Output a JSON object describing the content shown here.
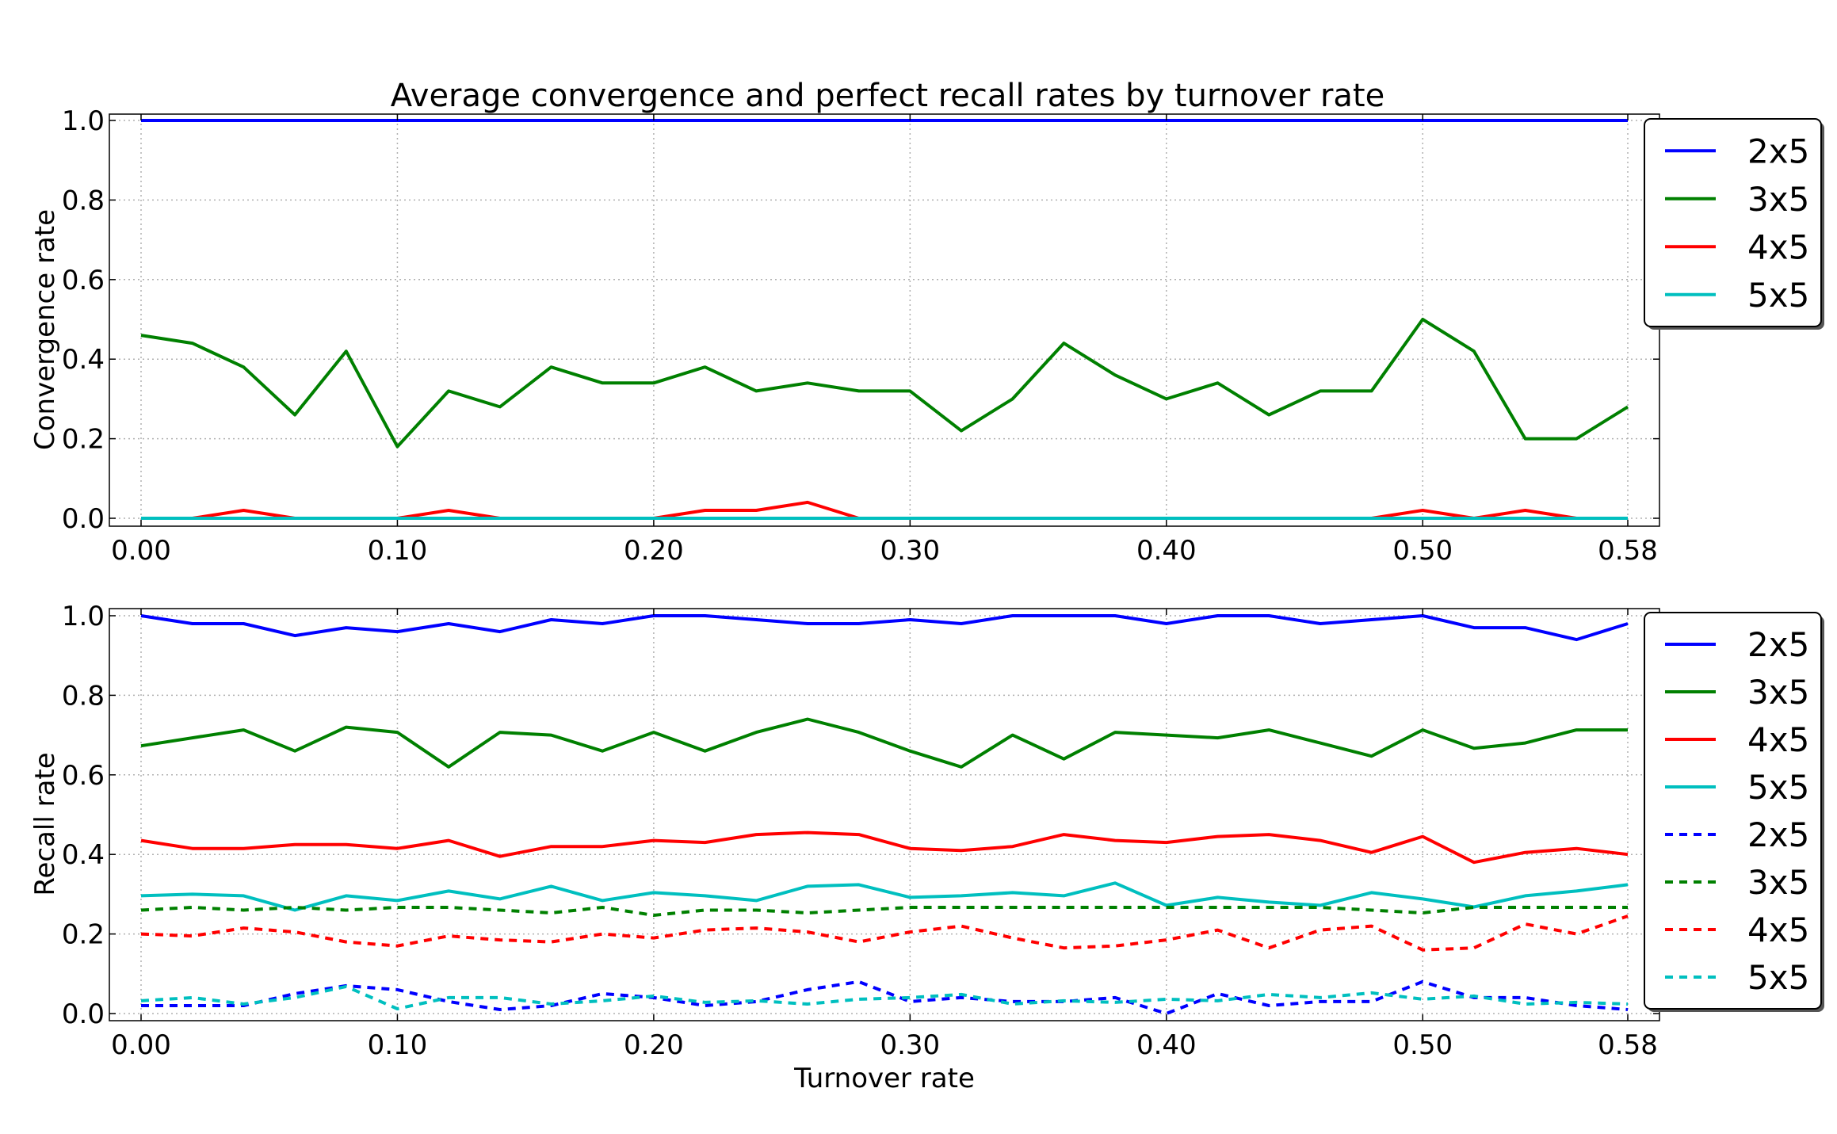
{
  "chart_data": [
    {
      "type": "line",
      "title": "Average convergence and perfect recall rates by turnover rate",
      "xlabel": "",
      "ylabel": "Convergence rate",
      "xlim": [
        0.0,
        0.58
      ],
      "ylim": [
        0.0,
        1.0
      ],
      "grid": true,
      "legend_position": "upper-right outside",
      "xticks": [
        "0.00",
        "0.10",
        "0.20",
        "0.30",
        "0.40",
        "0.50",
        "0.58"
      ],
      "yticks": [
        "0.0",
        "0.2",
        "0.4",
        "0.6",
        "0.8",
        "1.0"
      ],
      "x": [
        0.0,
        0.02,
        0.04,
        0.06,
        0.08,
        0.1,
        0.12,
        0.14,
        0.16,
        0.18,
        0.2,
        0.22,
        0.24,
        0.26,
        0.28,
        0.3,
        0.32,
        0.34,
        0.36,
        0.38,
        0.4,
        0.42,
        0.44,
        0.46,
        0.48,
        0.5,
        0.52,
        0.54,
        0.56,
        0.58
      ],
      "series": [
        {
          "name": "2x5",
          "color": "#0000ff",
          "style": "solid",
          "values": [
            1,
            1,
            1,
            1,
            1,
            1,
            1,
            1,
            1,
            1,
            1,
            1,
            1,
            1,
            1,
            1,
            1,
            1,
            1,
            1,
            1,
            1,
            1,
            1,
            1,
            1,
            1,
            1,
            1,
            1
          ]
        },
        {
          "name": "3x5",
          "color": "#008000",
          "style": "solid",
          "values": [
            0.46,
            0.44,
            0.38,
            0.26,
            0.42,
            0.18,
            0.32,
            0.28,
            0.38,
            0.34,
            0.34,
            0.38,
            0.32,
            0.34,
            0.32,
            0.32,
            0.22,
            0.3,
            0.44,
            0.36,
            0.3,
            0.34,
            0.26,
            0.32,
            0.32,
            0.5,
            0.42,
            0.2,
            0.2,
            0.28
          ]
        },
        {
          "name": "4x5",
          "color": "#ff0000",
          "style": "solid",
          "values": [
            0,
            0,
            0.02,
            0,
            0,
            0,
            0.02,
            0,
            0,
            0,
            0,
            0.02,
            0.02,
            0.04,
            0,
            0,
            0,
            0,
            0,
            0,
            0,
            0,
            0,
            0,
            0,
            0.02,
            0,
            0.02,
            0,
            0
          ]
        },
        {
          "name": "5x5",
          "color": "#00bfbf",
          "style": "solid",
          "values": [
            0,
            0,
            0,
            0,
            0,
            0,
            0,
            0,
            0,
            0,
            0,
            0,
            0,
            0,
            0,
            0,
            0,
            0,
            0,
            0,
            0,
            0,
            0,
            0,
            0,
            0,
            0,
            0,
            0,
            0
          ]
        }
      ]
    },
    {
      "type": "line",
      "title": "",
      "xlabel": "Turnover rate",
      "ylabel": "Recall rate",
      "xlim": [
        0.0,
        0.58
      ],
      "ylim": [
        0.0,
        1.0
      ],
      "grid": true,
      "legend_position": "upper-right outside",
      "xticks": [
        "0.00",
        "0.10",
        "0.20",
        "0.30",
        "0.40",
        "0.50",
        "0.58"
      ],
      "yticks": [
        "0.0",
        "0.2",
        "0.4",
        "0.6",
        "0.8",
        "1.0"
      ],
      "x": [
        0.0,
        0.02,
        0.04,
        0.06,
        0.08,
        0.1,
        0.12,
        0.14,
        0.16,
        0.18,
        0.2,
        0.22,
        0.24,
        0.26,
        0.28,
        0.3,
        0.32,
        0.34,
        0.36,
        0.38,
        0.4,
        0.42,
        0.44,
        0.46,
        0.48,
        0.5,
        0.52,
        0.54,
        0.56,
        0.58
      ],
      "series": [
        {
          "name": "2x5",
          "color": "#0000ff",
          "style": "solid",
          "values": [
            1.0,
            0.98,
            0.98,
            0.95,
            0.97,
            0.96,
            0.98,
            0.96,
            0.99,
            0.98,
            1.0,
            1.0,
            0.99,
            0.98,
            0.98,
            0.99,
            0.98,
            1.0,
            1.0,
            1.0,
            0.98,
            1.0,
            1.0,
            0.98,
            0.99,
            1.0,
            0.97,
            0.97,
            0.94,
            0.98
          ]
        },
        {
          "name": "3x5",
          "color": "#008000",
          "style": "solid",
          "values": [
            0.673,
            0.693,
            0.713,
            0.66,
            0.72,
            0.707,
            0.62,
            0.707,
            0.7,
            0.66,
            0.707,
            0.66,
            0.707,
            0.74,
            0.707,
            0.66,
            0.62,
            0.7,
            0.64,
            0.707,
            0.7,
            0.693,
            0.713,
            0.68,
            0.647,
            0.713,
            0.667,
            0.68,
            0.713,
            0.713
          ]
        },
        {
          "name": "4x5",
          "color": "#ff0000",
          "style": "solid",
          "values": [
            0.435,
            0.415,
            0.415,
            0.425,
            0.425,
            0.415,
            0.435,
            0.395,
            0.42,
            0.42,
            0.435,
            0.43,
            0.45,
            0.455,
            0.45,
            0.415,
            0.41,
            0.42,
            0.45,
            0.435,
            0.43,
            0.445,
            0.45,
            0.435,
            0.405,
            0.445,
            0.38,
            0.405,
            0.415,
            0.4
          ]
        },
        {
          "name": "5x5",
          "color": "#00bfbf",
          "style": "solid",
          "values": [
            0.296,
            0.3,
            0.296,
            0.26,
            0.296,
            0.284,
            0.308,
            0.288,
            0.32,
            0.284,
            0.304,
            0.296,
            0.284,
            0.32,
            0.324,
            0.292,
            0.296,
            0.304,
            0.296,
            0.328,
            0.272,
            0.292,
            0.28,
            0.272,
            0.304,
            0.288,
            0.268,
            0.296,
            0.308,
            0.324
          ]
        },
        {
          "name": "2x5",
          "color": "#0000ff",
          "style": "dashed",
          "values": [
            0.02,
            0.02,
            0.02,
            0.05,
            0.07,
            0.06,
            0.03,
            0.01,
            0.02,
            0.05,
            0.04,
            0.02,
            0.03,
            0.06,
            0.08,
            0.03,
            0.04,
            0.03,
            0.03,
            0.04,
            0.0,
            0.05,
            0.02,
            0.03,
            0.03,
            0.08,
            0.04,
            0.04,
            0.02,
            0.01
          ]
        },
        {
          "name": "3x5",
          "color": "#008000",
          "style": "dashed",
          "values": [
            0.26,
            0.267,
            0.26,
            0.267,
            0.26,
            0.267,
            0.267,
            0.26,
            0.253,
            0.267,
            0.247,
            0.26,
            0.26,
            0.253,
            0.26,
            0.267,
            0.267,
            0.267,
            0.267,
            0.267,
            0.267,
            0.267,
            0.267,
            0.267,
            0.26,
            0.253,
            0.267,
            0.267,
            0.267,
            0.267
          ]
        },
        {
          "name": "4x5",
          "color": "#ff0000",
          "style": "dashed",
          "values": [
            0.2,
            0.195,
            0.215,
            0.205,
            0.18,
            0.17,
            0.195,
            0.185,
            0.18,
            0.2,
            0.19,
            0.21,
            0.215,
            0.205,
            0.18,
            0.205,
            0.22,
            0.19,
            0.165,
            0.17,
            0.185,
            0.21,
            0.165,
            0.21,
            0.22,
            0.16,
            0.165,
            0.225,
            0.2,
            0.245
          ]
        },
        {
          "name": "5x5",
          "color": "#00bfbf",
          "style": "dashed",
          "values": [
            0.032,
            0.04,
            0.024,
            0.04,
            0.068,
            0.012,
            0.04,
            0.04,
            0.024,
            0.032,
            0.044,
            0.028,
            0.032,
            0.024,
            0.036,
            0.04,
            0.048,
            0.024,
            0.032,
            0.028,
            0.036,
            0.032,
            0.048,
            0.04,
            0.052,
            0.036,
            0.044,
            0.024,
            0.028,
            0.024
          ]
        }
      ]
    }
  ]
}
